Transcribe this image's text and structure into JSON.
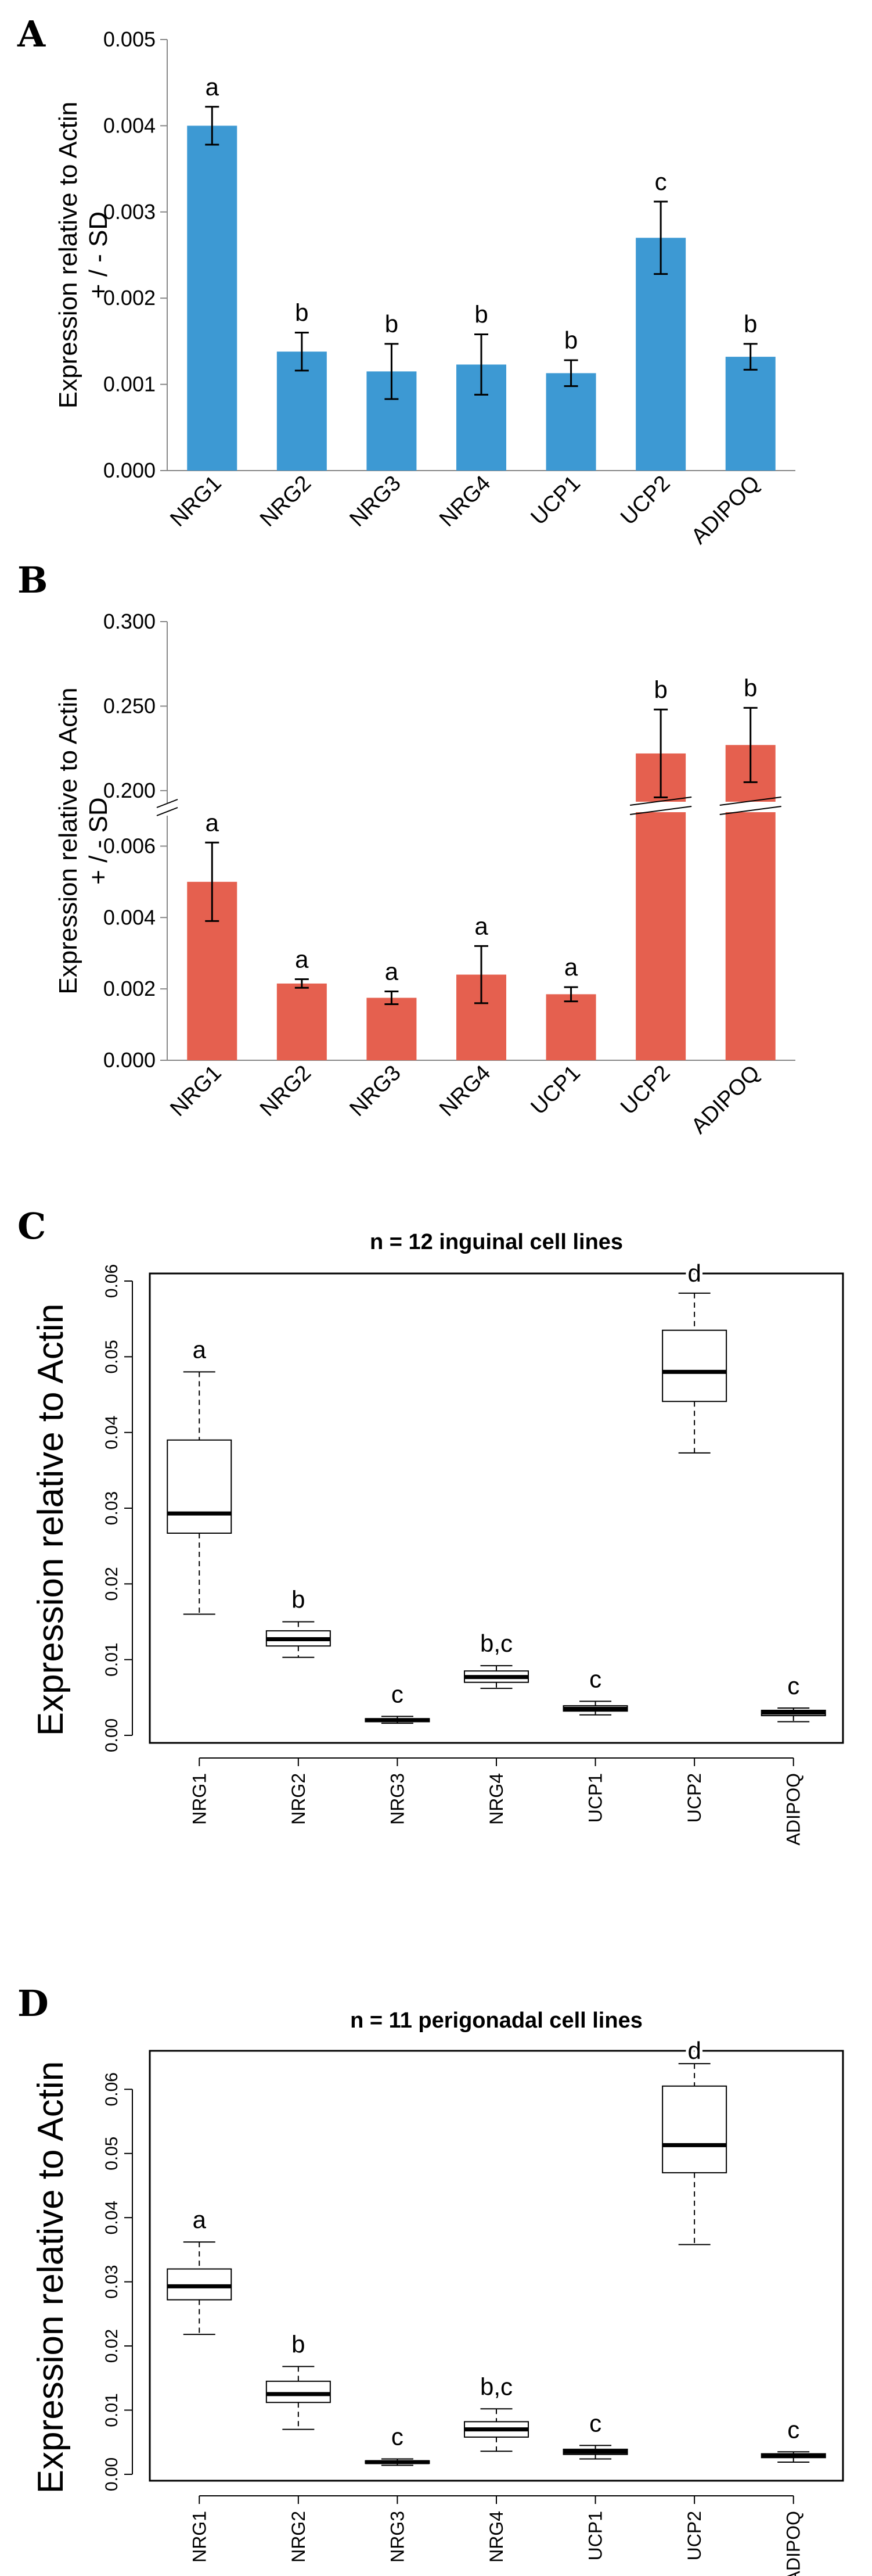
{
  "chart_data": [
    {
      "panel": "A",
      "type": "bar",
      "title": "",
      "ylabel_lines": [
        "Expression relative to Actin",
        "+ / - SD"
      ],
      "xlabel": "",
      "categories": [
        "NRG1",
        "NRG2",
        "NRG3",
        "NRG4",
        "UCP1",
        "UCP2",
        "ADIPOQ"
      ],
      "values": [
        0.004,
        0.00138,
        0.00115,
        0.00123,
        0.00113,
        0.0027,
        0.00132
      ],
      "errors": [
        0.00022,
        0.00022,
        0.00032,
        0.00035,
        0.00015,
        0.00042,
        0.00015
      ],
      "sig_labels": [
        "a",
        "b",
        "b",
        "b",
        "b",
        "c",
        "b"
      ],
      "ylim": [
        0,
        0.005
      ],
      "yticks": [
        "0.000",
        "0.001",
        "0.002",
        "0.003",
        "0.004",
        "0.005"
      ],
      "color": "#3d99d3"
    },
    {
      "panel": "B",
      "type": "bar",
      "title": "",
      "ylabel_lines": [
        "Expression relative to Actin",
        "+ / - SD"
      ],
      "xlabel": "",
      "axis_break": true,
      "categories": [
        "NRG1",
        "NRG2",
        "NRG3",
        "NRG4",
        "UCP1",
        "UCP2",
        "ADIPOQ"
      ],
      "values": [
        0.005,
        0.00215,
        0.00175,
        0.0024,
        0.00185,
        0.222,
        0.227
      ],
      "errors": [
        0.0011,
        0.00012,
        0.00018,
        0.0008,
        0.0002,
        0.026,
        0.022
      ],
      "sig_labels": [
        "a",
        "a",
        "a",
        "a",
        "a",
        "b",
        "b"
      ],
      "ylim_lower": [
        0,
        0.007
      ],
      "ylim_upper": [
        0.19,
        0.3
      ],
      "yticks_lower": [
        "0.000",
        "0.002",
        "0.004",
        "0.006"
      ],
      "yticks_upper": [
        "0.200",
        "0.250",
        "0.300"
      ],
      "color": "#e5604f"
    },
    {
      "panel": "C",
      "type": "box",
      "title": "n = 12 inguinal cell lines",
      "ylabel": "Expression relative to Actin",
      "categories": [
        "NRG1",
        "NRG2",
        "NRG3",
        "NRG4",
        "UCP1",
        "UCP2",
        "ADIPOQ"
      ],
      "boxes": [
        {
          "min": 0.016,
          "q1": 0.0267,
          "median": 0.0293,
          "q3": 0.039,
          "max": 0.048
        },
        {
          "min": 0.0103,
          "q1": 0.0118,
          "median": 0.0127,
          "q3": 0.0138,
          "max": 0.015
        },
        {
          "min": 0.0016,
          "q1": 0.0018,
          "median": 0.002,
          "q3": 0.0022,
          "max": 0.0025
        },
        {
          "min": 0.0062,
          "q1": 0.007,
          "median": 0.0077,
          "q3": 0.0085,
          "max": 0.0092
        },
        {
          "min": 0.0027,
          "q1": 0.0032,
          "median": 0.0035,
          "q3": 0.0039,
          "max": 0.0045
        },
        {
          "min": 0.0373,
          "q1": 0.0441,
          "median": 0.048,
          "q3": 0.0535,
          "max": 0.0584
        },
        {
          "min": 0.0018,
          "q1": 0.0026,
          "median": 0.003,
          "q3": 0.0033,
          "max": 0.0036
        }
      ],
      "sig_labels": [
        "a",
        "b",
        "c",
        "b,c",
        "c",
        "d",
        "c"
      ],
      "ylim": [
        -0.001,
        0.061
      ],
      "yticks": [
        "0.00",
        "0.01",
        "0.02",
        "0.03",
        "0.04",
        "0.05",
        "0.06"
      ]
    },
    {
      "panel": "D",
      "type": "box",
      "title": "n = 11 perigonadal cell lines",
      "ylabel": "Expression relative to Actin",
      "categories": [
        "NRG1",
        "NRG2",
        "NRG3",
        "NRG4",
        "UCP1",
        "UCP2",
        "ADIPOQ"
      ],
      "boxes": [
        {
          "min": 0.0218,
          "q1": 0.0272,
          "median": 0.0293,
          "q3": 0.032,
          "max": 0.0362
        },
        {
          "min": 0.007,
          "q1": 0.0112,
          "median": 0.0125,
          "q3": 0.0145,
          "max": 0.0168
        },
        {
          "min": 0.0014,
          "q1": 0.0017,
          "median": 0.0019,
          "q3": 0.0021,
          "max": 0.0024
        },
        {
          "min": 0.0036,
          "q1": 0.0058,
          "median": 0.007,
          "q3": 0.0082,
          "max": 0.0102
        },
        {
          "min": 0.0024,
          "q1": 0.0031,
          "median": 0.0035,
          "q3": 0.0039,
          "max": 0.0045
        },
        {
          "min": 0.0358,
          "q1": 0.047,
          "median": 0.0513,
          "q3": 0.0605,
          "max": 0.064
        },
        {
          "min": 0.0019,
          "q1": 0.0026,
          "median": 0.0029,
          "q3": 0.0032,
          "max": 0.0035
        }
      ],
      "sig_labels": [
        "a",
        "b",
        "c",
        "b,c",
        "c",
        "d",
        "c"
      ],
      "ylim": [
        -0.001,
        0.066
      ],
      "yticks": [
        "0.00",
        "0.01",
        "0.02",
        "0.03",
        "0.04",
        "0.05",
        "0.06"
      ]
    }
  ]
}
